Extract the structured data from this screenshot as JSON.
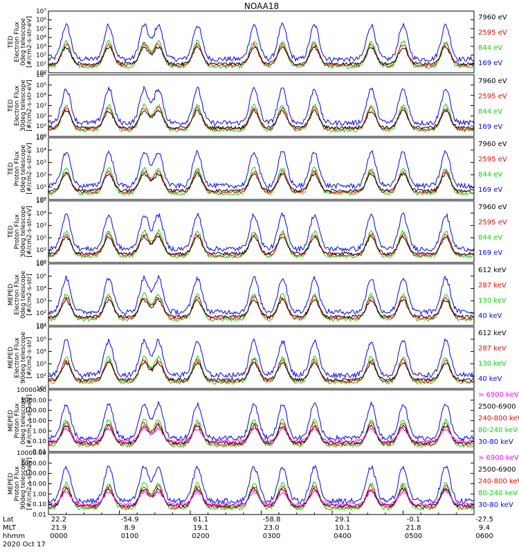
{
  "title": "NOAA18",
  "colors": {
    "blue": "#0000ff",
    "red": "#ff0000",
    "green": "#00dd00",
    "black": "#000000",
    "magenta": "#ff00ff"
  },
  "panels": [
    {
      "id": "ted-electron-0deg",
      "ylabel": [
        "TED",
        "Electron Flux",
        "0deg telescope",
        "[#/cm2-s-str-eV]"
      ],
      "yticks": [
        "10⁰",
        "10¹",
        "10²",
        "10³",
        "10⁴",
        "10⁵",
        "10⁶",
        "10⁷"
      ],
      "legend": [
        {
          "label": "7960 eV",
          "color": "#000000"
        },
        {
          "label": "2595 eV",
          "color": "#ff0000"
        },
        {
          "label": "844 eV",
          "color": "#00dd00"
        },
        {
          "label": "169 eV",
          "color": "#0000ff"
        }
      ]
    },
    {
      "id": "ted-electron-30deg",
      "ylabel": [
        "TED",
        "Electron Flux",
        "30deg telescope",
        "[#/cm2-s-str-eV]"
      ],
      "yticks": [
        "10⁰",
        "10¹",
        "10²",
        "10³",
        "10⁴",
        "10⁵",
        "10⁶"
      ],
      "legend": [
        {
          "label": "7960 eV",
          "color": "#000000"
        },
        {
          "label": "2595 eV",
          "color": "#ff0000"
        },
        {
          "label": "844 eV",
          "color": "#00dd00"
        },
        {
          "label": "169 eV",
          "color": "#0000ff"
        }
      ]
    },
    {
      "id": "ted-proton-0deg",
      "ylabel": [
        "TED",
        "Proton Flux",
        "0deg telescope",
        "[#/cm2-s-str-eV]"
      ],
      "yticks": [
        "10⁰",
        "10¹",
        "10²",
        "10³",
        "10⁴",
        "10⁵"
      ],
      "legend": [
        {
          "label": "7960 eV",
          "color": "#000000"
        },
        {
          "label": "2595 eV",
          "color": "#ff0000"
        },
        {
          "label": "844 eV",
          "color": "#00dd00"
        },
        {
          "label": "169 eV",
          "color": "#0000ff"
        }
      ]
    },
    {
      "id": "ted-proton-30deg",
      "ylabel": [
        "TED",
        "Proton Flux",
        "30deg telescope",
        "[#/cm2-s-str-eV]"
      ],
      "yticks": [
        "10⁰",
        "10¹",
        "10²",
        "10³",
        "10⁴",
        "10⁵"
      ],
      "legend": [
        {
          "label": "7960 eV",
          "color": "#000000"
        },
        {
          "label": "2595 eV",
          "color": "#ff0000"
        },
        {
          "label": "844 eV",
          "color": "#00dd00"
        },
        {
          "label": "169 eV",
          "color": "#0000ff"
        }
      ]
    },
    {
      "id": "meped-electron-0deg",
      "ylabel": [
        "MEPED",
        "Electron Flux",
        "0deg telescope",
        "[#/cm2-s-str]"
      ],
      "yticks": [
        "10¹",
        "10²",
        "10³",
        "10⁴",
        "10⁵",
        "10⁶"
      ],
      "legend": [
        {
          "label": "612 keV",
          "color": "#000000"
        },
        {
          "label": "287 keV",
          "color": "#ff0000"
        },
        {
          "label": "130 keV",
          "color": "#00dd00"
        },
        {
          "label": "40 keV",
          "color": "#0000ff"
        }
      ]
    },
    {
      "id": "meped-electron-90deg",
      "ylabel": [
        "MEPED",
        "Electron Flux",
        "90deg telescope",
        "[#/cm2-s-str]"
      ],
      "yticks": [
        "10¹",
        "10²",
        "10³",
        "10⁴",
        "10⁵",
        "10⁶"
      ],
      "legend": [
        {
          "label": "612 keV",
          "color": "#000000"
        },
        {
          "label": "287 keV",
          "color": "#ff0000"
        },
        {
          "label": "130 keV",
          "color": "#00dd00"
        },
        {
          "label": "40 keV",
          "color": "#0000ff"
        }
      ]
    },
    {
      "id": "meped-proton-0deg",
      "ylabel": [
        "MEPED",
        "Proton Flux",
        "0deg telescope",
        "[#/cm2-s-sr-keV]"
      ],
      "yticks": [
        "0.01",
        "0.10",
        "1.00",
        "10.00",
        "100.00",
        "1000.00",
        "10000.00"
      ],
      "legend": [
        {
          "label": "> 6900 keV",
          "color": "#ff00ff"
        },
        {
          "label": "2500-6900",
          "color": "#000000"
        },
        {
          "label": "240-800 keV",
          "color": "#ff0000"
        },
        {
          "label": "80-240 keV",
          "color": "#00dd00"
        },
        {
          "label": "30-80 keV",
          "color": "#0000ff"
        }
      ]
    },
    {
      "id": "meped-proton-90deg",
      "ylabel": [
        "MEPED",
        "Proton Flux",
        "90deg telescope",
        "[#/cm2-s-sr-keV]"
      ],
      "yticks": [
        "0.01",
        "0.10",
        "1.00",
        "10.00",
        "100.00",
        "1000.00",
        "10000.00"
      ],
      "legend": [
        {
          "label": "> 6900 keV",
          "color": "#ff00ff"
        },
        {
          "label": "2500-6900",
          "color": "#000000"
        },
        {
          "label": "240-800 keV",
          "color": "#ff0000"
        },
        {
          "label": "80-240 keV",
          "color": "#00dd00"
        },
        {
          "label": "30-80 keV",
          "color": "#0000ff"
        }
      ]
    }
  ],
  "chart_data": {
    "type": "line",
    "title": "NOAA18",
    "xlabel": "hhmm",
    "x_ticks": [
      "0000",
      "0100",
      "0200",
      "0300",
      "0400",
      "0500",
      "0600"
    ],
    "x_range_hours": [
      0,
      6
    ],
    "orbit_rows": [
      {
        "label": "Lat",
        "values": [
          "22.2",
          "-54.9",
          "61.1",
          "-58.8",
          "29.1",
          "-0.1",
          "-27.5"
        ]
      },
      {
        "label": "MLT",
        "values": [
          "21.9",
          "8.9",
          "19.1",
          "23.0",
          "10.1",
          "21.8",
          "9.4"
        ]
      },
      {
        "label": "hhmm",
        "values": [
          "0000",
          "0100",
          "0200",
          "0300",
          "0400",
          "0500",
          "0600"
        ]
      }
    ],
    "date": "2020 Oct 17",
    "scale": "log",
    "event_centers_hours": [
      0.25,
      0.85,
      1.35,
      1.55,
      2.1,
      2.9,
      3.3,
      3.75,
      4.55,
      5.0,
      5.6
    ]
  }
}
